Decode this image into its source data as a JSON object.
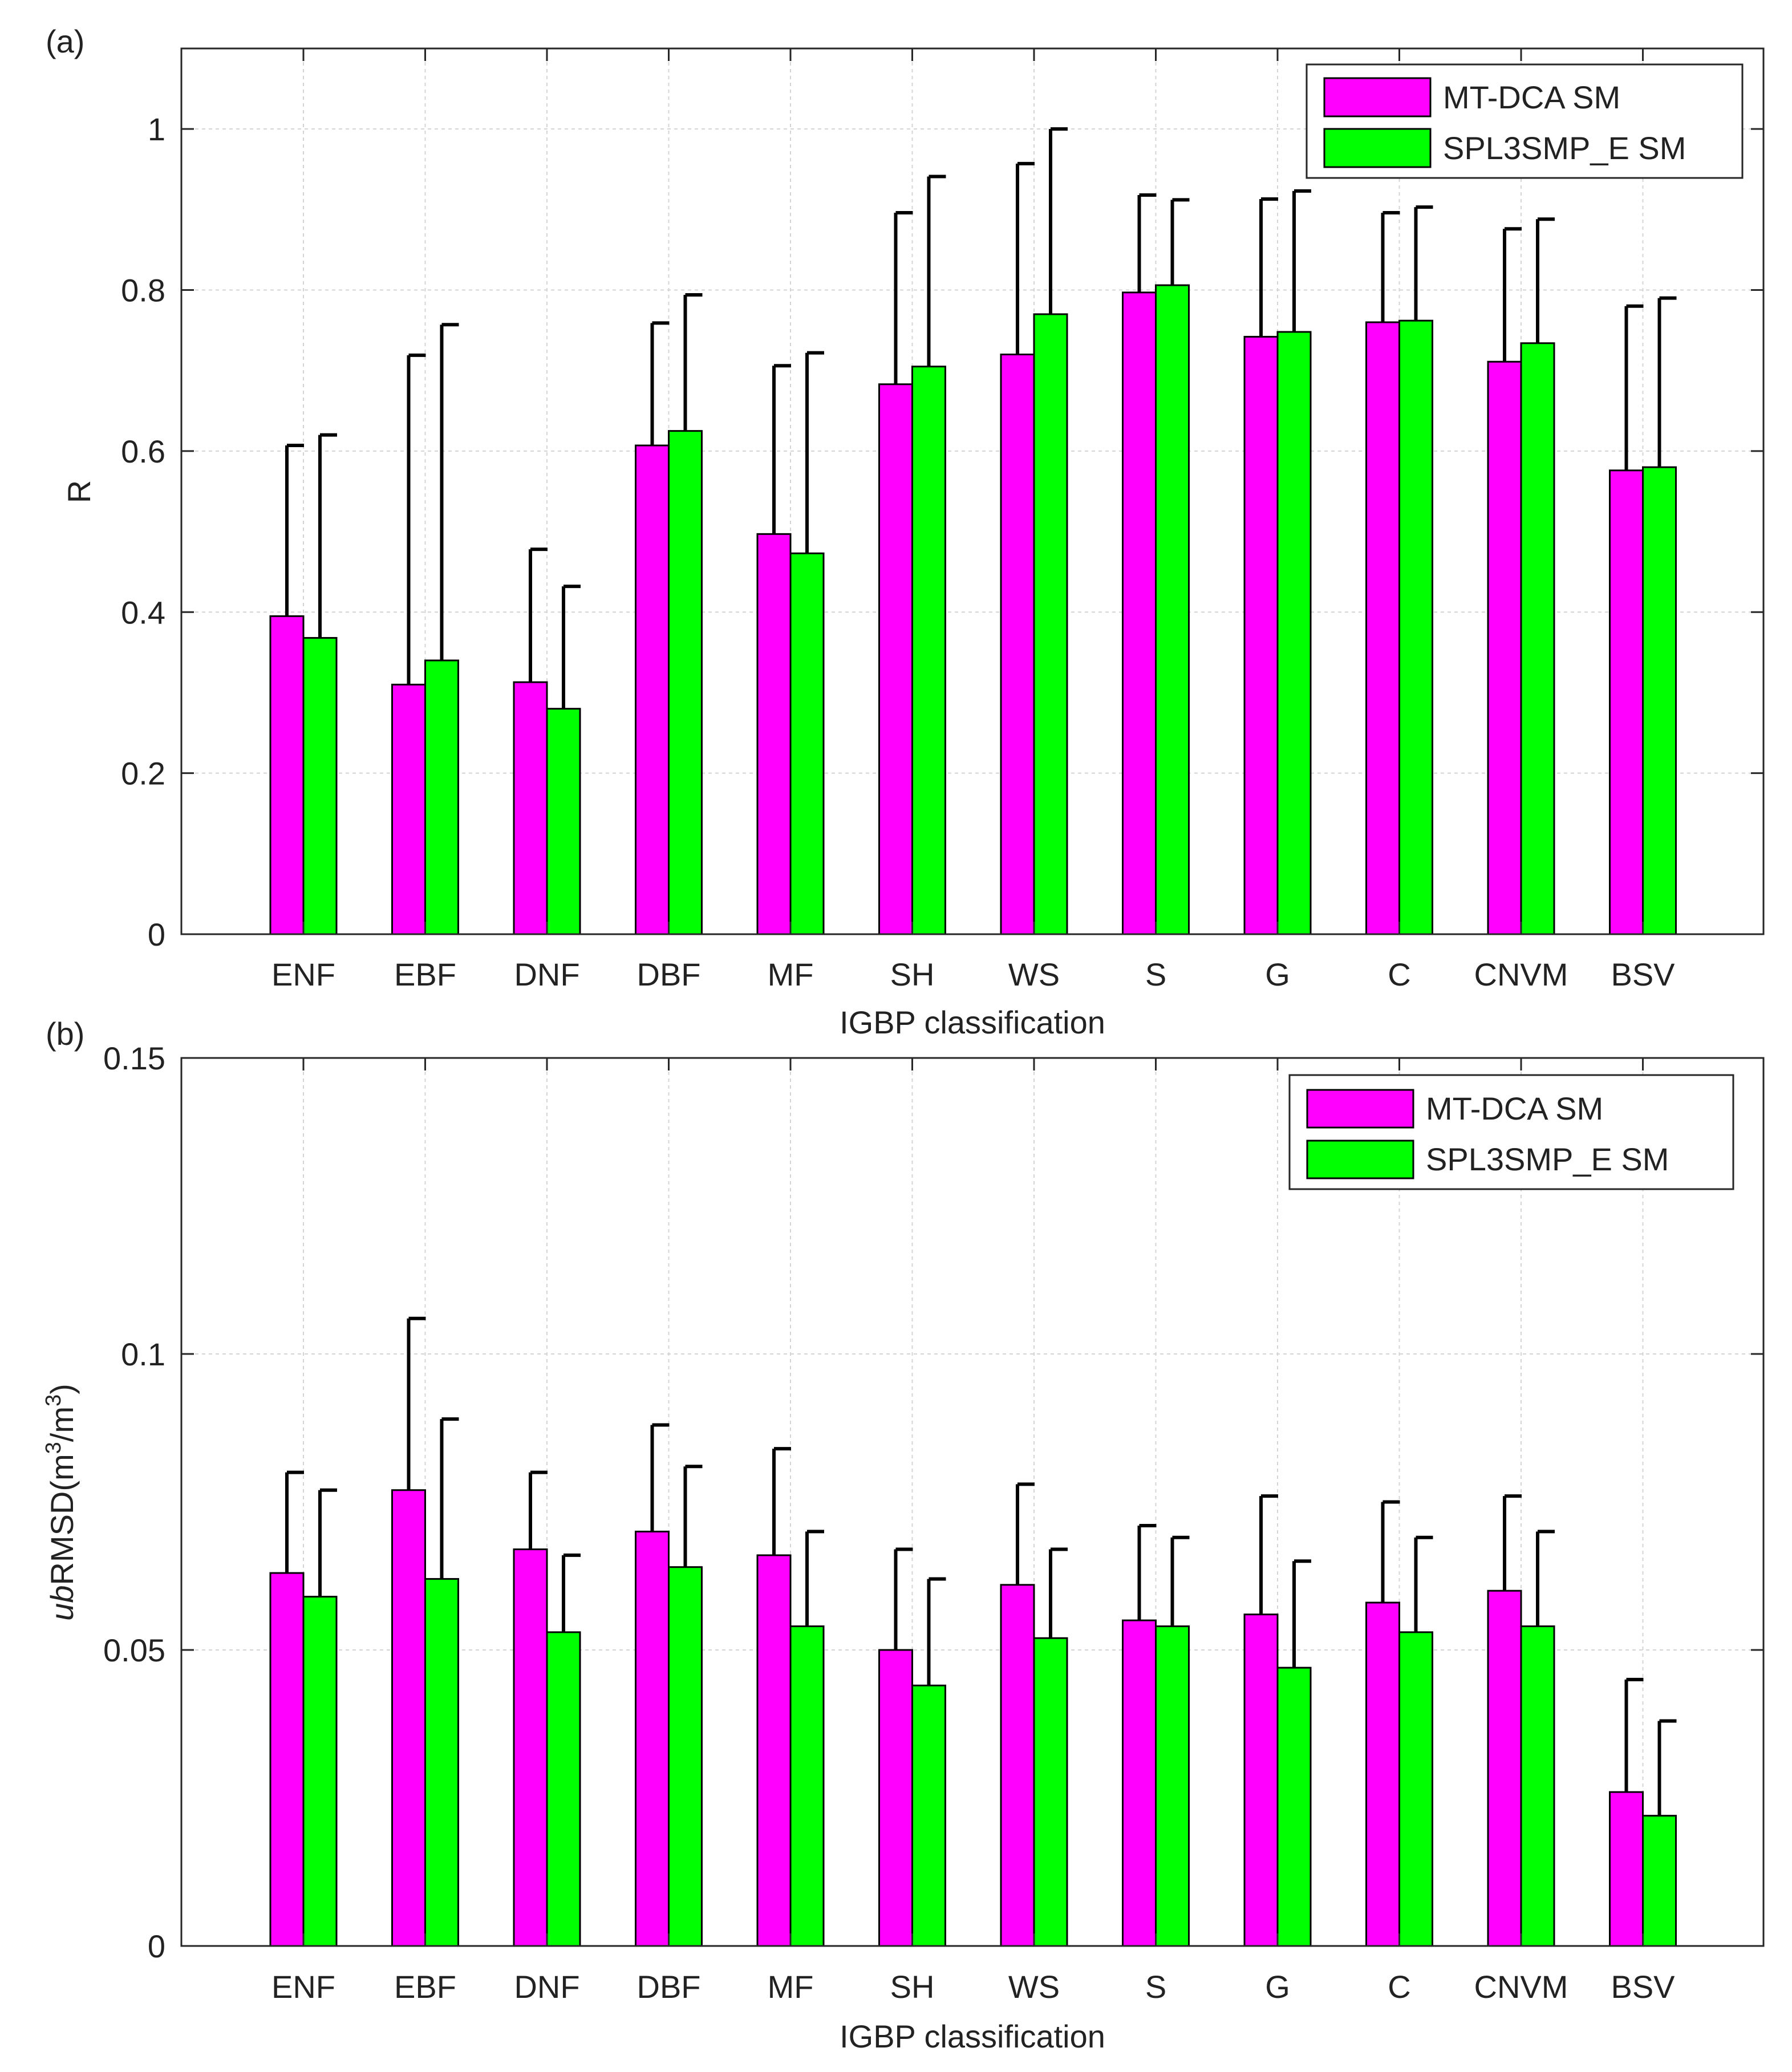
{
  "colors": {
    "mt_dca": "#ff00ff",
    "spl3smp": "#00ff00",
    "error_bar": "#000000",
    "grid": "#d4d4d4",
    "axis": "#262626"
  },
  "chart_data": [
    {
      "type": "bar",
      "panel_label": "(a)",
      "title": "",
      "xlabel": "IGBP classification",
      "ylabel": "R",
      "ylim": [
        0,
        1.1
      ],
      "yticks": [
        0,
        0.2,
        0.4,
        0.6,
        0.8,
        1
      ],
      "ytick_labels": [
        "0",
        "0.2",
        "0.4",
        "0.6",
        "0.8",
        "1"
      ],
      "grid": true,
      "legend_position": "top-right",
      "categories": [
        "ENF",
        "EBF",
        "DNF",
        "DBF",
        "MF",
        "SH",
        "WS",
        "S",
        "G",
        "C",
        "CNVM",
        "BSV"
      ],
      "series": [
        {
          "name": "MT-DCA SM",
          "color": "#ff00ff",
          "values": [
            0.395,
            0.31,
            0.313,
            0.607,
            0.497,
            0.683,
            0.72,
            0.797,
            0.742,
            0.76,
            0.711,
            0.576
          ],
          "error_upper": [
            0.607,
            0.719,
            0.478,
            0.759,
            0.706,
            0.896,
            0.957,
            0.918,
            0.913,
            0.896,
            0.876,
            0.78
          ]
        },
        {
          "name": "SPL3SMP_E SM",
          "color": "#00ff00",
          "values": [
            0.368,
            0.34,
            0.28,
            0.625,
            0.473,
            0.705,
            0.77,
            0.806,
            0.748,
            0.762,
            0.734,
            0.58
          ],
          "error_upper": [
            0.62,
            0.757,
            0.432,
            0.794,
            0.722,
            0.941,
            1.0,
            0.912,
            0.923,
            0.903,
            0.888,
            0.79
          ]
        }
      ]
    },
    {
      "type": "bar",
      "panel_label": "(b)",
      "title": "",
      "xlabel": "IGBP classification",
      "ylabel_prefix": "ub",
      "ylabel_main": "RMSD(m",
      "ylabel_sup1": "3",
      "ylabel_mid": "/m",
      "ylabel_sup2": "3",
      "ylabel_end": ")",
      "ylim": [
        0,
        0.15
      ],
      "yticks": [
        0,
        0.05,
        0.1,
        0.15
      ],
      "ytick_labels": [
        "0",
        "0.05",
        "0.1",
        "0.15"
      ],
      "grid": true,
      "legend_position": "top-right",
      "categories": [
        "ENF",
        "EBF",
        "DNF",
        "DBF",
        "MF",
        "SH",
        "WS",
        "S",
        "G",
        "C",
        "CNVM",
        "BSV"
      ],
      "series": [
        {
          "name": "MT-DCA SM",
          "color": "#ff00ff",
          "values": [
            0.063,
            0.077,
            0.067,
            0.07,
            0.066,
            0.05,
            0.061,
            0.055,
            0.056,
            0.058,
            0.06,
            0.026
          ],
          "error_upper": [
            0.08,
            0.106,
            0.08,
            0.088,
            0.084,
            0.067,
            0.078,
            0.071,
            0.076,
            0.075,
            0.076,
            0.045
          ]
        },
        {
          "name": "SPL3SMP_E SM",
          "color": "#00ff00",
          "values": [
            0.059,
            0.062,
            0.053,
            0.064,
            0.054,
            0.044,
            0.052,
            0.054,
            0.047,
            0.053,
            0.054,
            0.022
          ],
          "error_upper": [
            0.077,
            0.089,
            0.066,
            0.081,
            0.07,
            0.062,
            0.067,
            0.069,
            0.065,
            0.069,
            0.07,
            0.038
          ]
        }
      ]
    }
  ]
}
